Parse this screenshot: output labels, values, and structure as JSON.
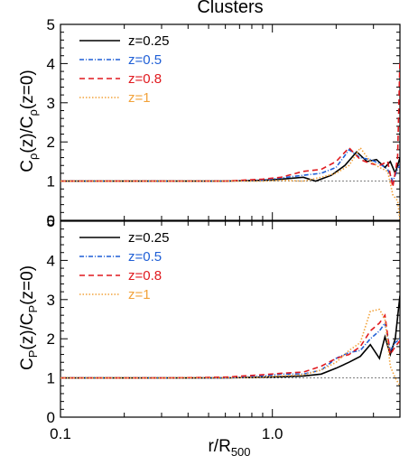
{
  "figure": {
    "title": "Clusters"
  },
  "chart_data": [
    {
      "type": "line",
      "panel": "top",
      "ylabel_main": "C",
      "ylabel_sub": "ρ",
      "ylabel_expr": "(z)/C",
      "ylabel_sub2": "ρ",
      "ylabel_tail": "(z=0)",
      "xlim": [
        0.1,
        4.0
      ],
      "xscale": "log",
      "ylim": [
        0,
        5
      ],
      "yticks": [
        "0",
        "1",
        "2",
        "3",
        "4",
        "5"
      ],
      "reference_line": 1,
      "legend_position": "top-left",
      "series": [
        {
          "name": "z=0.25",
          "color": "#000000",
          "dash": "solid",
          "x": [
            0.1,
            0.3,
            0.6,
            0.9,
            1.1,
            1.4,
            1.6,
            1.9,
            2.2,
            2.5,
            2.8,
            3.1,
            3.4,
            3.6,
            3.8,
            4.0
          ],
          "y": [
            1.0,
            1.0,
            1.0,
            1.02,
            1.05,
            1.1,
            1.0,
            1.15,
            1.4,
            1.75,
            1.5,
            1.55,
            1.35,
            1.5,
            1.2,
            1.6
          ]
        },
        {
          "name": "z=0.5",
          "color": "#1f5fd6",
          "dash": "dashdot",
          "x": [
            0.1,
            0.3,
            0.6,
            0.9,
            1.1,
            1.4,
            1.7,
            2.0,
            2.3,
            2.6,
            2.9,
            3.2,
            3.5,
            3.7,
            3.9,
            4.0
          ],
          "y": [
            1.0,
            1.0,
            1.0,
            1.03,
            1.08,
            1.15,
            1.2,
            1.35,
            1.8,
            1.6,
            1.55,
            1.45,
            1.3,
            1.0,
            1.3,
            1.4
          ]
        },
        {
          "name": "z=0.8",
          "color": "#e0191e",
          "dash": "dashed",
          "x": [
            0.1,
            0.3,
            0.6,
            0.9,
            1.1,
            1.4,
            1.7,
            2.0,
            2.3,
            2.6,
            2.9,
            3.2,
            3.5,
            3.7,
            3.9,
            4.0
          ],
          "y": [
            1.0,
            1.0,
            1.0,
            1.05,
            1.1,
            1.25,
            1.3,
            1.5,
            1.85,
            1.55,
            1.45,
            1.4,
            1.5,
            0.85,
            1.6,
            4.1
          ]
        },
        {
          "name": "z=1",
          "color": "#f2a23a",
          "dash": "dotted",
          "x": [
            0.1,
            0.3,
            0.6,
            0.9,
            1.1,
            1.4,
            1.7,
            2.0,
            2.3,
            2.6,
            2.9,
            3.2,
            3.5,
            3.7,
            3.9,
            4.0
          ],
          "y": [
            1.0,
            1.0,
            1.0,
            1.0,
            1.02,
            1.0,
            1.1,
            1.2,
            1.4,
            1.85,
            1.5,
            1.35,
            1.25,
            0.65,
            0.5,
            0.0
          ]
        }
      ]
    },
    {
      "type": "line",
      "panel": "bottom",
      "ylabel_main": "C",
      "ylabel_sub": "P",
      "ylabel_expr": "(z)/C",
      "ylabel_sub2": "P",
      "ylabel_tail": "(z=0)",
      "xlim": [
        0.1,
        4.0
      ],
      "xscale": "log",
      "ylim": [
        0,
        5
      ],
      "yticks": [
        "0",
        "1",
        "2",
        "3",
        "4",
        "5"
      ],
      "xticks": [
        "0.1",
        "1.0"
      ],
      "xlabel_main": "r/R",
      "xlabel_sub": "500",
      "reference_line": 1,
      "legend_position": "top-left",
      "series": [
        {
          "name": "z=0.25",
          "color": "#000000",
          "dash": "solid",
          "x": [
            0.1,
            0.3,
            0.6,
            0.9,
            1.1,
            1.4,
            1.7,
            2.0,
            2.3,
            2.6,
            2.9,
            3.2,
            3.4,
            3.6,
            3.8,
            4.0
          ],
          "y": [
            1.0,
            1.0,
            1.0,
            1.02,
            1.03,
            1.05,
            1.1,
            1.25,
            1.4,
            1.55,
            1.85,
            1.5,
            2.05,
            1.6,
            2.0,
            3.1
          ]
        },
        {
          "name": "z=0.5",
          "color": "#1f5fd6",
          "dash": "dashdot",
          "x": [
            0.1,
            0.3,
            0.6,
            0.9,
            1.1,
            1.4,
            1.7,
            2.0,
            2.3,
            2.6,
            2.9,
            3.2,
            3.4,
            3.6,
            3.8,
            4.0
          ],
          "y": [
            1.0,
            1.0,
            1.0,
            1.05,
            1.1,
            1.1,
            1.2,
            1.5,
            1.65,
            1.7,
            2.0,
            2.2,
            2.4,
            1.7,
            1.9,
            2.0
          ]
        },
        {
          "name": "z=0.8",
          "color": "#e0191e",
          "dash": "dashed",
          "x": [
            0.1,
            0.3,
            0.6,
            0.9,
            1.1,
            1.4,
            1.7,
            2.0,
            2.3,
            2.6,
            2.9,
            3.2,
            3.4,
            3.6,
            3.8,
            4.0
          ],
          "y": [
            1.0,
            1.0,
            1.02,
            1.08,
            1.12,
            1.15,
            1.3,
            1.5,
            1.6,
            1.8,
            2.2,
            2.4,
            2.6,
            1.6,
            1.8,
            1.95
          ]
        },
        {
          "name": "z=1",
          "color": "#f2a23a",
          "dash": "dotted",
          "x": [
            0.1,
            0.3,
            0.6,
            0.9,
            1.1,
            1.4,
            1.7,
            2.0,
            2.3,
            2.6,
            2.9,
            3.2,
            3.4,
            3.6,
            3.8,
            4.0
          ],
          "y": [
            1.0,
            1.0,
            1.0,
            1.02,
            1.05,
            1.08,
            1.2,
            1.4,
            1.7,
            1.9,
            2.7,
            2.75,
            2.5,
            1.3,
            1.0,
            0.8
          ]
        }
      ]
    }
  ]
}
